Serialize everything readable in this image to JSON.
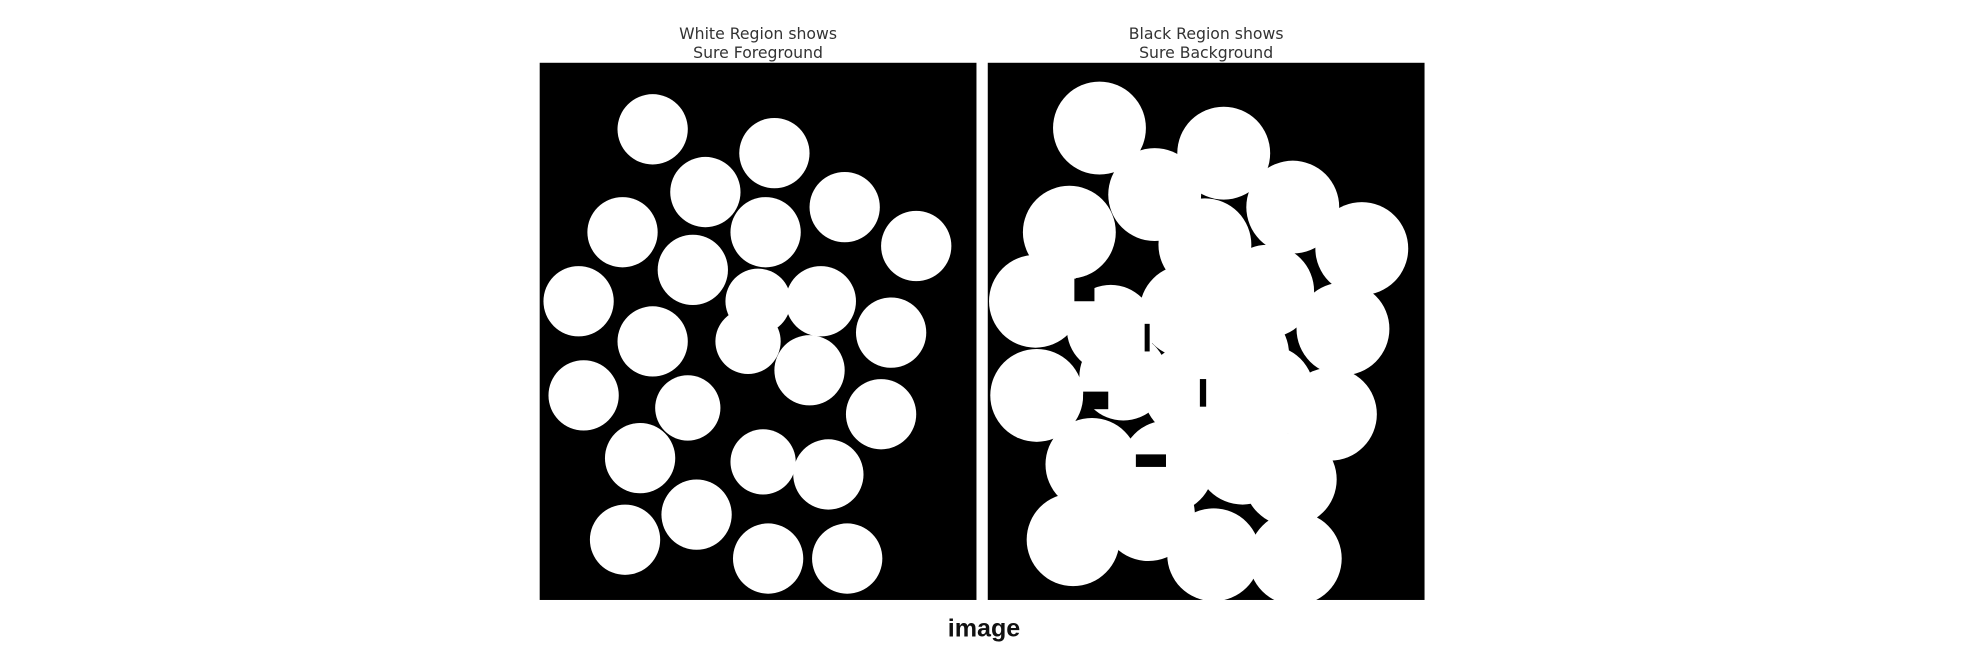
{
  "panels": [
    {
      "title_line1": "White Region shows",
      "title_line2": "Sure Foreground"
    },
    {
      "title_line1": "Black Region shows",
      "title_line2": "Sure Background"
    }
  ],
  "caption": "image"
}
